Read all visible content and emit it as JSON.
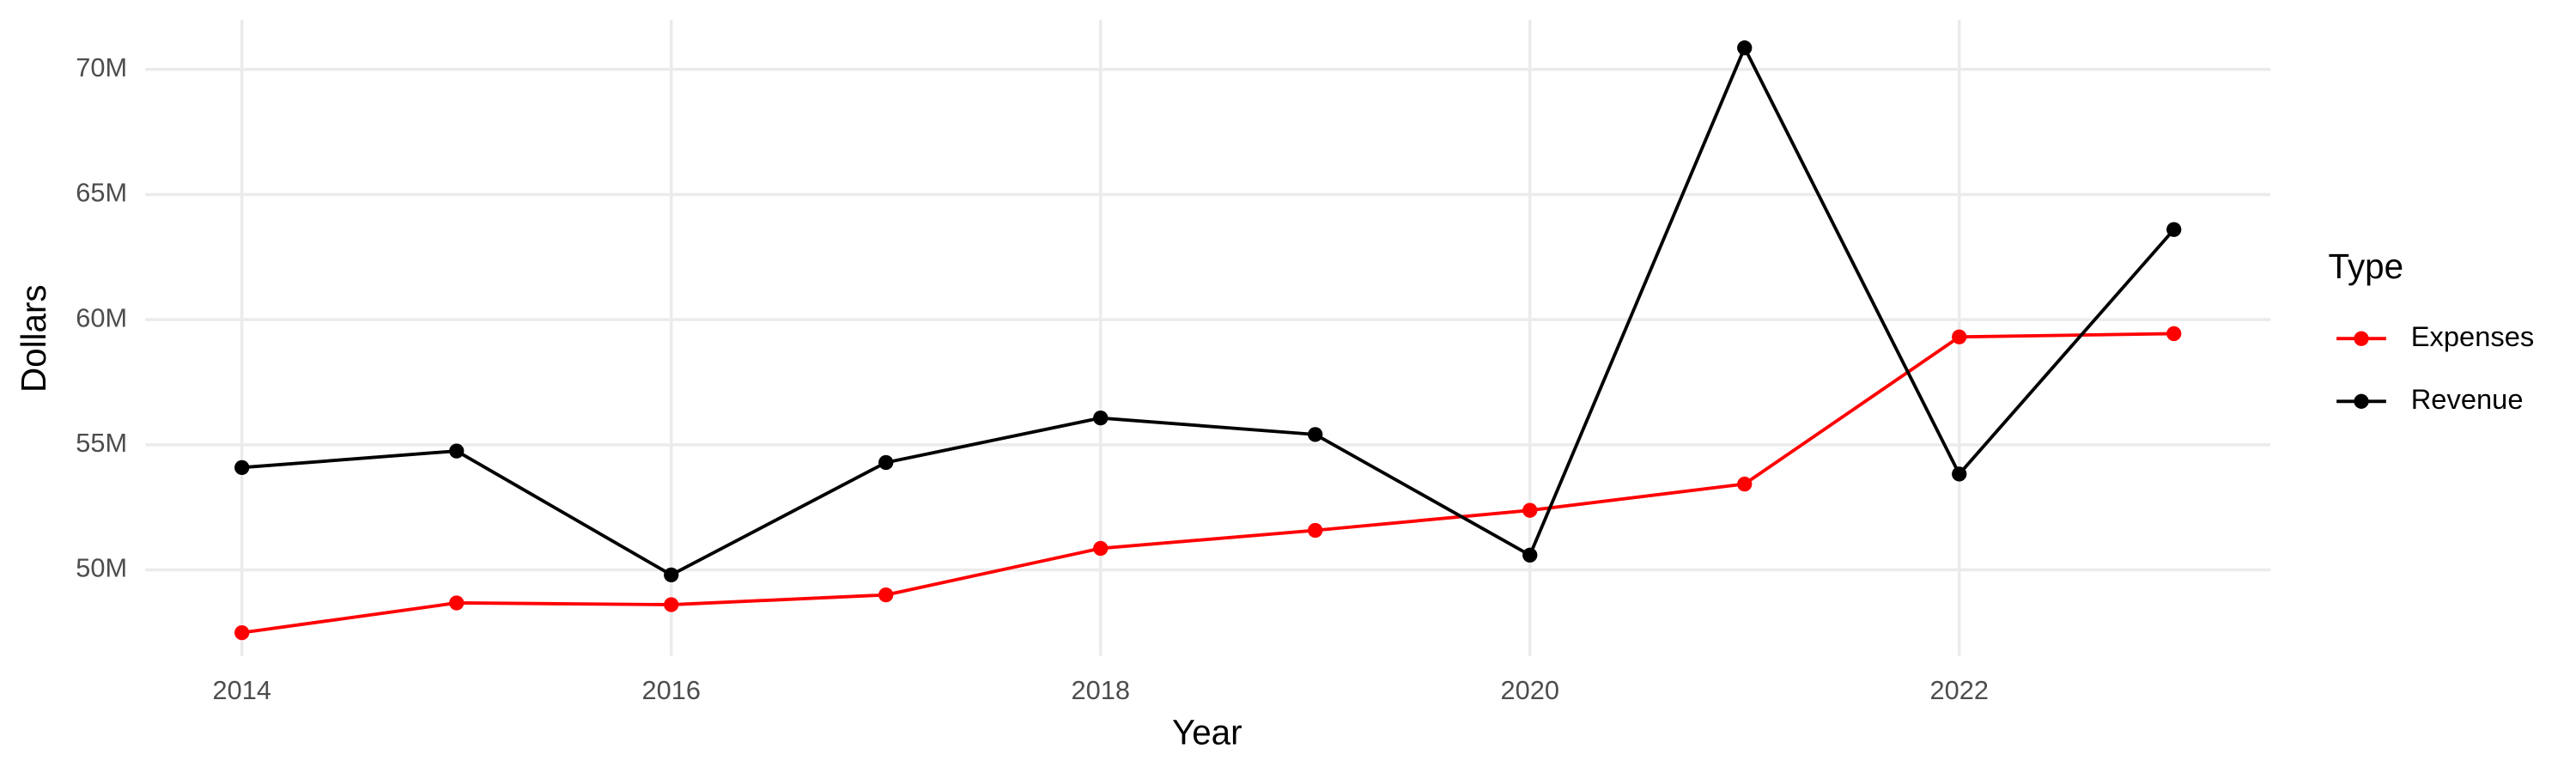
{
  "chart_data": {
    "type": "line",
    "x_label": "Year",
    "y_label": "Dollars",
    "legend_title": "Type",
    "legend_position": "right",
    "grid": true,
    "x": [
      2014,
      2015,
      2016,
      2017,
      2018,
      2019,
      2020,
      2021,
      2022,
      2023
    ],
    "series": [
      {
        "name": "Expenses",
        "color": "#ff0000",
        "values": [
          47490000,
          48680000,
          48610000,
          49000000,
          50860000,
          51580000,
          52380000,
          53430000,
          59310000,
          59440000
        ]
      },
      {
        "name": "Revenue",
        "color": "#000000",
        "values": [
          54090000,
          54750000,
          49800000,
          54290000,
          56070000,
          55410000,
          50590000,
          70860000,
          53830000,
          63600000
        ]
      }
    ],
    "xlim": [
      2013.55,
      2023.45
    ],
    "xticks": [
      2014,
      2016,
      2018,
      2020,
      2022
    ],
    "ylim": [
      46570000,
      71980000
    ],
    "yticks": [
      {
        "value": 50000000,
        "label": "50M"
      },
      {
        "value": 55000000,
        "label": "55M"
      },
      {
        "value": 60000000,
        "label": "60M"
      },
      {
        "value": 65000000,
        "label": "65M"
      },
      {
        "value": 70000000,
        "label": "70M"
      }
    ]
  }
}
